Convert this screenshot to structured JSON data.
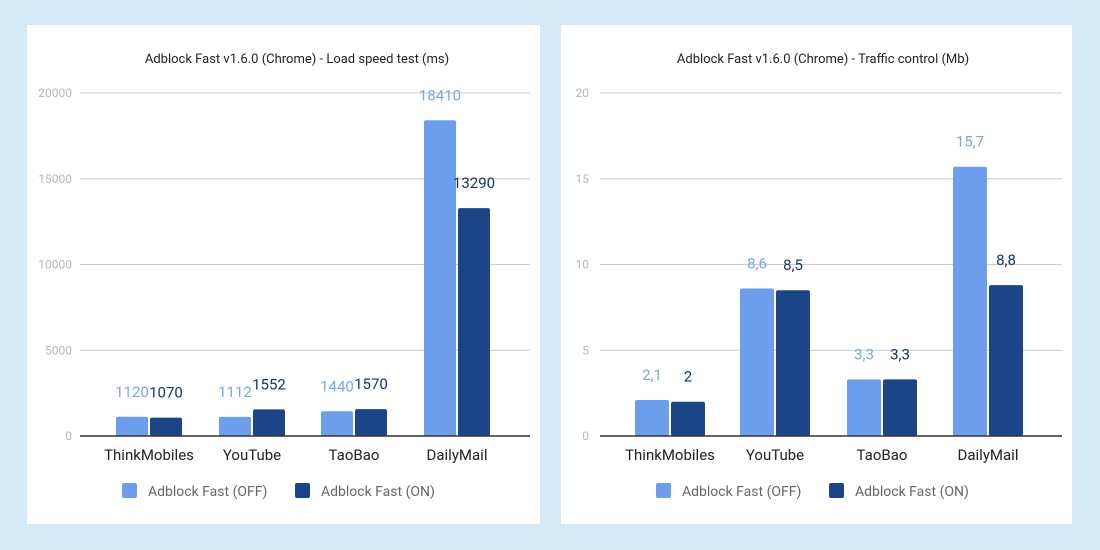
{
  "colors": {
    "off": "#6d9eeb",
    "on": "#1c4587",
    "off_label": "#7aa5e6",
    "on_label": "#16336a",
    "grid": "#cccccc",
    "tick": "#b7b7b7",
    "axis": "#333333"
  },
  "chart_data": [
    {
      "type": "bar",
      "title": "Adblock Fast v1.6.0 (Chrome) - Load speed test (ms)",
      "xlabel": "",
      "ylabel": "",
      "categories": [
        "ThinkMobiles",
        "YouTube",
        "TaoBao",
        "DailyMail"
      ],
      "series": [
        {
          "name": "Adblock Fast (OFF)",
          "values": [
            1120,
            1112,
            1440,
            18410
          ],
          "labels": [
            "1120",
            "1112",
            "1440",
            "18410"
          ]
        },
        {
          "name": "Adblock Fast (ON)",
          "values": [
            1070,
            1552,
            1570,
            13290
          ],
          "labels": [
            "1070",
            "1552",
            "1570",
            "13290"
          ]
        }
      ],
      "ylim": [
        0,
        20000
      ],
      "yticks": [
        "0",
        "5000",
        "10000",
        "15000",
        "20000"
      ],
      "grid": true,
      "legend": "bottom"
    },
    {
      "type": "bar",
      "title": "Adblock Fast v1.6.0 (Chrome) - Traffic control (Mb)",
      "xlabel": "",
      "ylabel": "",
      "categories": [
        "ThinkMobiles",
        "YouTube",
        "TaoBao",
        "DailyMail"
      ],
      "series": [
        {
          "name": "Adblock Fast (OFF)",
          "values": [
            2.1,
            8.6,
            3.3,
            15.7
          ],
          "labels": [
            "2,1",
            "8,6",
            "3,3",
            "15,7"
          ]
        },
        {
          "name": "Adblock Fast (ON)",
          "values": [
            2,
            8.5,
            3.3,
            8.8
          ],
          "labels": [
            "2",
            "8,5",
            "3,3",
            "8,8"
          ]
        }
      ],
      "ylim": [
        0,
        20
      ],
      "yticks": [
        "0",
        "5",
        "10",
        "15",
        "20"
      ],
      "grid": true,
      "legend": "bottom"
    }
  ]
}
